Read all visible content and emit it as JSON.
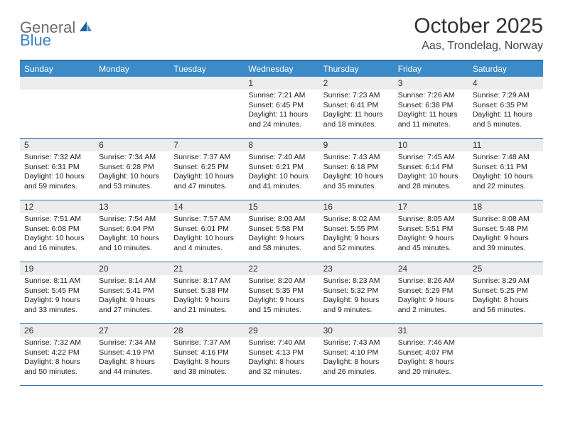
{
  "logo": {
    "text1": "General",
    "text2": "Blue"
  },
  "title": "October 2025",
  "subtitle": "Aas, Trondelag, Norway",
  "weekdays": [
    "Sunday",
    "Monday",
    "Tuesday",
    "Wednesday",
    "Thursday",
    "Friday",
    "Saturday"
  ],
  "colors": {
    "header_bg": "#3b8bc8",
    "border": "#2f6fa8",
    "daynum_bg": "#ececec",
    "logo_gray": "#6b6b6b",
    "logo_blue": "#3a7fc4"
  },
  "days": [
    {
      "n": "",
      "sunrise": "",
      "sunset": "",
      "daylight": ""
    },
    {
      "n": "",
      "sunrise": "",
      "sunset": "",
      "daylight": ""
    },
    {
      "n": "",
      "sunrise": "",
      "sunset": "",
      "daylight": ""
    },
    {
      "n": "1",
      "sunrise": "Sunrise: 7:21 AM",
      "sunset": "Sunset: 6:45 PM",
      "daylight": "Daylight: 11 hours and 24 minutes."
    },
    {
      "n": "2",
      "sunrise": "Sunrise: 7:23 AM",
      "sunset": "Sunset: 6:41 PM",
      "daylight": "Daylight: 11 hours and 18 minutes."
    },
    {
      "n": "3",
      "sunrise": "Sunrise: 7:26 AM",
      "sunset": "Sunset: 6:38 PM",
      "daylight": "Daylight: 11 hours and 11 minutes."
    },
    {
      "n": "4",
      "sunrise": "Sunrise: 7:29 AM",
      "sunset": "Sunset: 6:35 PM",
      "daylight": "Daylight: 11 hours and 5 minutes."
    },
    {
      "n": "5",
      "sunrise": "Sunrise: 7:32 AM",
      "sunset": "Sunset: 6:31 PM",
      "daylight": "Daylight: 10 hours and 59 minutes."
    },
    {
      "n": "6",
      "sunrise": "Sunrise: 7:34 AM",
      "sunset": "Sunset: 6:28 PM",
      "daylight": "Daylight: 10 hours and 53 minutes."
    },
    {
      "n": "7",
      "sunrise": "Sunrise: 7:37 AM",
      "sunset": "Sunset: 6:25 PM",
      "daylight": "Daylight: 10 hours and 47 minutes."
    },
    {
      "n": "8",
      "sunrise": "Sunrise: 7:40 AM",
      "sunset": "Sunset: 6:21 PM",
      "daylight": "Daylight: 10 hours and 41 minutes."
    },
    {
      "n": "9",
      "sunrise": "Sunrise: 7:43 AM",
      "sunset": "Sunset: 6:18 PM",
      "daylight": "Daylight: 10 hours and 35 minutes."
    },
    {
      "n": "10",
      "sunrise": "Sunrise: 7:45 AM",
      "sunset": "Sunset: 6:14 PM",
      "daylight": "Daylight: 10 hours and 28 minutes."
    },
    {
      "n": "11",
      "sunrise": "Sunrise: 7:48 AM",
      "sunset": "Sunset: 6:11 PM",
      "daylight": "Daylight: 10 hours and 22 minutes."
    },
    {
      "n": "12",
      "sunrise": "Sunrise: 7:51 AM",
      "sunset": "Sunset: 6:08 PM",
      "daylight": "Daylight: 10 hours and 16 minutes."
    },
    {
      "n": "13",
      "sunrise": "Sunrise: 7:54 AM",
      "sunset": "Sunset: 6:04 PM",
      "daylight": "Daylight: 10 hours and 10 minutes."
    },
    {
      "n": "14",
      "sunrise": "Sunrise: 7:57 AM",
      "sunset": "Sunset: 6:01 PM",
      "daylight": "Daylight: 10 hours and 4 minutes."
    },
    {
      "n": "15",
      "sunrise": "Sunrise: 8:00 AM",
      "sunset": "Sunset: 5:58 PM",
      "daylight": "Daylight: 9 hours and 58 minutes."
    },
    {
      "n": "16",
      "sunrise": "Sunrise: 8:02 AM",
      "sunset": "Sunset: 5:55 PM",
      "daylight": "Daylight: 9 hours and 52 minutes."
    },
    {
      "n": "17",
      "sunrise": "Sunrise: 8:05 AM",
      "sunset": "Sunset: 5:51 PM",
      "daylight": "Daylight: 9 hours and 45 minutes."
    },
    {
      "n": "18",
      "sunrise": "Sunrise: 8:08 AM",
      "sunset": "Sunset: 5:48 PM",
      "daylight": "Daylight: 9 hours and 39 minutes."
    },
    {
      "n": "19",
      "sunrise": "Sunrise: 8:11 AM",
      "sunset": "Sunset: 5:45 PM",
      "daylight": "Daylight: 9 hours and 33 minutes."
    },
    {
      "n": "20",
      "sunrise": "Sunrise: 8:14 AM",
      "sunset": "Sunset: 5:41 PM",
      "daylight": "Daylight: 9 hours and 27 minutes."
    },
    {
      "n": "21",
      "sunrise": "Sunrise: 8:17 AM",
      "sunset": "Sunset: 5:38 PM",
      "daylight": "Daylight: 9 hours and 21 minutes."
    },
    {
      "n": "22",
      "sunrise": "Sunrise: 8:20 AM",
      "sunset": "Sunset: 5:35 PM",
      "daylight": "Daylight: 9 hours and 15 minutes."
    },
    {
      "n": "23",
      "sunrise": "Sunrise: 8:23 AM",
      "sunset": "Sunset: 5:32 PM",
      "daylight": "Daylight: 9 hours and 9 minutes."
    },
    {
      "n": "24",
      "sunrise": "Sunrise: 8:26 AM",
      "sunset": "Sunset: 5:29 PM",
      "daylight": "Daylight: 9 hours and 2 minutes."
    },
    {
      "n": "25",
      "sunrise": "Sunrise: 8:29 AM",
      "sunset": "Sunset: 5:25 PM",
      "daylight": "Daylight: 8 hours and 56 minutes."
    },
    {
      "n": "26",
      "sunrise": "Sunrise: 7:32 AM",
      "sunset": "Sunset: 4:22 PM",
      "daylight": "Daylight: 8 hours and 50 minutes."
    },
    {
      "n": "27",
      "sunrise": "Sunrise: 7:34 AM",
      "sunset": "Sunset: 4:19 PM",
      "daylight": "Daylight: 8 hours and 44 minutes."
    },
    {
      "n": "28",
      "sunrise": "Sunrise: 7:37 AM",
      "sunset": "Sunset: 4:16 PM",
      "daylight": "Daylight: 8 hours and 38 minutes."
    },
    {
      "n": "29",
      "sunrise": "Sunrise: 7:40 AM",
      "sunset": "Sunset: 4:13 PM",
      "daylight": "Daylight: 8 hours and 32 minutes."
    },
    {
      "n": "30",
      "sunrise": "Sunrise: 7:43 AM",
      "sunset": "Sunset: 4:10 PM",
      "daylight": "Daylight: 8 hours and 26 minutes."
    },
    {
      "n": "31",
      "sunrise": "Sunrise: 7:46 AM",
      "sunset": "Sunset: 4:07 PM",
      "daylight": "Daylight: 8 hours and 20 minutes."
    },
    {
      "n": "",
      "sunrise": "",
      "sunset": "",
      "daylight": ""
    }
  ]
}
